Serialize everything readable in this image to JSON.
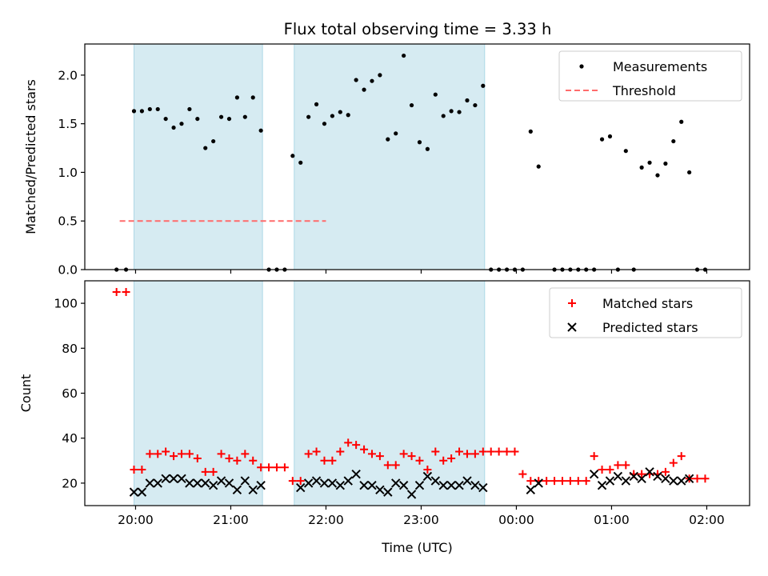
{
  "chart_data": [
    {
      "type": "scatter",
      "title": "Flux total observing time = 3.33 h",
      "xlabel": "",
      "ylabel": "Matched/Predicted stars",
      "ylim": [
        0,
        2.32
      ],
      "yticks": [
        "0.0",
        "0.5",
        "1.0",
        "1.5",
        "2.0"
      ],
      "legend": {
        "position": "top-right",
        "entries": [
          "Measurements",
          "Threshold"
        ]
      },
      "shaded_intervals": [
        [
          "19:59",
          "21:20"
        ],
        [
          "21:40",
          "23:40"
        ]
      ],
      "threshold": {
        "name": "Threshold",
        "y": 0.5,
        "x_range": [
          "19:50",
          "22:00"
        ],
        "color": "#ff6b6b"
      },
      "series": [
        {
          "name": "Measurements",
          "color": "#000000",
          "x": [
            "19:48",
            "19:54",
            "19:59",
            "20:04",
            "20:09",
            "20:14",
            "20:19",
            "20:24",
            "20:29",
            "20:34",
            "20:39",
            "20:44",
            "20:49",
            "20:54",
            "20:59",
            "21:04",
            "21:09",
            "21:14",
            "21:19",
            "21:24",
            "21:29",
            "21:34",
            "21:39",
            "21:44",
            "21:49",
            "21:54",
            "21:59",
            "22:04",
            "22:09",
            "22:14",
            "22:19",
            "22:24",
            "22:29",
            "22:34",
            "22:39",
            "22:44",
            "22:49",
            "22:54",
            "22:59",
            "23:04",
            "23:09",
            "23:14",
            "23:19",
            "23:24",
            "23:29",
            "23:34",
            "23:39",
            "23:44",
            "23:49",
            "23:54",
            "23:59",
            "00:04",
            "00:09",
            "00:14",
            "00:24",
            "00:29",
            "00:34",
            "00:39",
            "00:44",
            "00:49",
            "00:54",
            "00:59",
            "01:04",
            "01:09",
            "01:14",
            "01:19",
            "01:24",
            "01:29",
            "01:34",
            "01:39",
            "01:44",
            "01:49",
            "01:54",
            "01:59"
          ],
          "y": [
            0,
            0,
            1.63,
            1.63,
            1.65,
            1.65,
            1.55,
            1.46,
            1.5,
            1.65,
            1.55,
            1.25,
            1.32,
            1.57,
            1.55,
            1.77,
            1.57,
            1.77,
            1.43,
            0,
            0,
            0,
            1.17,
            1.1,
            1.57,
            1.7,
            1.5,
            1.58,
            1.62,
            1.59,
            1.95,
            1.85,
            1.94,
            2.0,
            1.34,
            1.4,
            2.2,
            1.69,
            1.31,
            1.24,
            1.8,
            1.58,
            1.63,
            1.62,
            1.74,
            1.69,
            1.89,
            0,
            0,
            0,
            0,
            0,
            1.42,
            1.06,
            0,
            0,
            0,
            0,
            0,
            0,
            1.34,
            1.37,
            0,
            1.22,
            0,
            1.05,
            1.1,
            0.97,
            1.09,
            1.32,
            1.52,
            1.0,
            0,
            0
          ]
        }
      ]
    },
    {
      "type": "scatter",
      "title": "",
      "xlabel": "Time (UTC)",
      "ylabel": "Count",
      "ylim": [
        10,
        110
      ],
      "yticks": [
        "20",
        "40",
        "60",
        "80",
        "100"
      ],
      "xticks": [
        "20:00",
        "21:00",
        "22:00",
        "23:00",
        "00:00",
        "01:00",
        "02:00"
      ],
      "legend": {
        "position": "top-right",
        "entries": [
          "Matched stars",
          "Predicted stars"
        ]
      },
      "shaded_intervals": [
        [
          "19:59",
          "21:20"
        ],
        [
          "21:40",
          "23:40"
        ]
      ],
      "series": [
        {
          "name": "Matched stars",
          "marker": "plus",
          "color": "#ff0000",
          "x": [
            "19:48",
            "19:54",
            "19:59",
            "20:04",
            "20:09",
            "20:14",
            "20:19",
            "20:24",
            "20:29",
            "20:34",
            "20:39",
            "20:44",
            "20:49",
            "20:54",
            "20:59",
            "21:04",
            "21:09",
            "21:14",
            "21:19",
            "21:24",
            "21:29",
            "21:34",
            "21:39",
            "21:44",
            "21:49",
            "21:54",
            "21:59",
            "22:04",
            "22:09",
            "22:14",
            "22:19",
            "22:24",
            "22:29",
            "22:34",
            "22:39",
            "22:44",
            "22:49",
            "22:54",
            "22:59",
            "23:04",
            "23:09",
            "23:14",
            "23:19",
            "23:24",
            "23:29",
            "23:34",
            "23:39",
            "23:44",
            "23:49",
            "23:54",
            "23:59",
            "00:04",
            "00:09",
            "00:14",
            "00:19",
            "00:24",
            "00:29",
            "00:34",
            "00:39",
            "00:44",
            "00:49",
            "00:54",
            "00:59",
            "01:04",
            "01:09",
            "01:14",
            "01:19",
            "01:24",
            "01:29",
            "01:34",
            "01:39",
            "01:44",
            "01:49",
            "01:54",
            "01:59"
          ],
          "y": [
            105,
            105,
            26,
            26,
            33,
            33,
            34,
            32,
            33,
            33,
            31,
            25,
            25,
            33,
            31,
            30,
            33,
            30,
            27,
            27,
            27,
            27,
            21,
            21,
            33,
            34,
            30,
            30,
            34,
            38,
            37,
            35,
            33,
            32,
            28,
            28,
            33,
            32,
            30,
            26,
            34,
            30,
            31,
            34,
            33,
            33,
            34,
            34,
            34,
            34,
            34,
            24,
            21,
            21,
            21,
            21,
            21,
            21,
            21,
            21,
            32,
            26,
            26,
            28,
            28,
            24,
            24,
            24,
            24,
            25,
            29,
            32,
            22,
            22,
            22
          ]
        },
        {
          "name": "Predicted stars",
          "marker": "x",
          "color": "#000000",
          "x": [
            "19:59",
            "20:04",
            "20:09",
            "20:14",
            "20:19",
            "20:24",
            "20:29",
            "20:34",
            "20:39",
            "20:44",
            "20:49",
            "20:54",
            "20:59",
            "21:04",
            "21:09",
            "21:14",
            "21:19",
            "21:44",
            "21:49",
            "21:54",
            "21:59",
            "22:04",
            "22:09",
            "22:14",
            "22:19",
            "22:24",
            "22:29",
            "22:34",
            "22:39",
            "22:44",
            "22:49",
            "22:54",
            "22:59",
            "23:04",
            "23:09",
            "23:14",
            "23:19",
            "23:24",
            "23:29",
            "23:34",
            "23:39",
            "00:09",
            "00:14",
            "00:49",
            "00:54",
            "00:59",
            "01:04",
            "01:09",
            "01:14",
            "01:19",
            "01:24",
            "01:29",
            "01:34",
            "01:39",
            "01:44",
            "01:49"
          ],
          "y": [
            16,
            16,
            20,
            20,
            22,
            22,
            22,
            20,
            20,
            20,
            19,
            21,
            20,
            17,
            21,
            17,
            19,
            18,
            20,
            21,
            20,
            20,
            19,
            21,
            24,
            19,
            19,
            17,
            16,
            20,
            19,
            15,
            19,
            23,
            21,
            19,
            19,
            19,
            21,
            19,
            18,
            17,
            20,
            24,
            19,
            21,
            23,
            21,
            23,
            22,
            25,
            23,
            22,
            21,
            21,
            22
          ]
        }
      ]
    }
  ]
}
